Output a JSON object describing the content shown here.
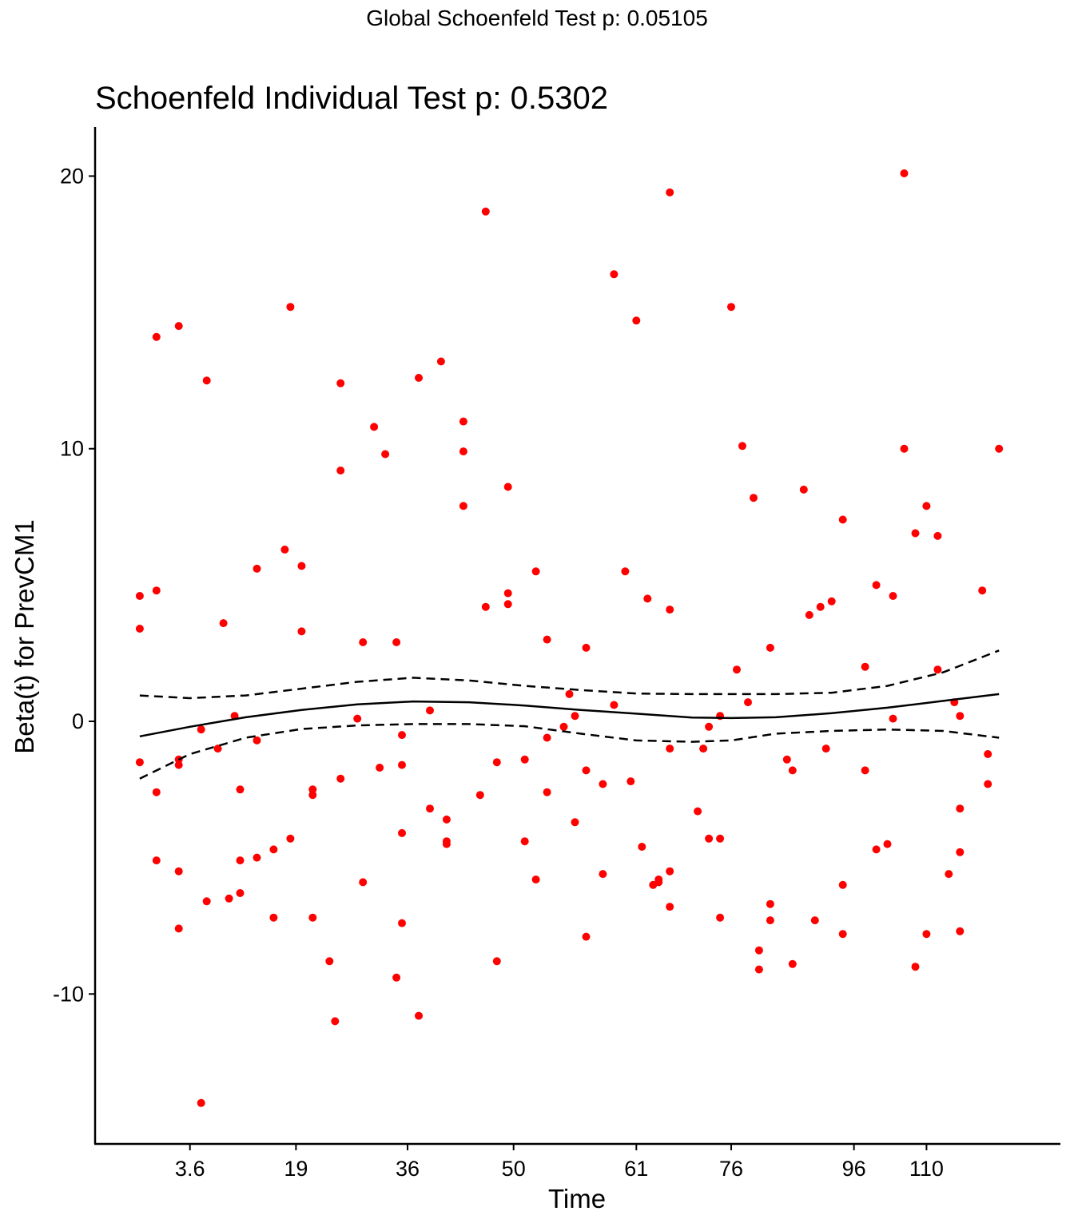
{
  "chart_data": {
    "type": "scatter",
    "suptitle": "Global Schoenfeld Test p: 0.05105",
    "title": "Schoenfeld Individual Test p: 0.5302",
    "xlabel": "Time",
    "ylabel": "Beta(t) for PrevCM1",
    "x_scale": "rank-transformed (km time transform)",
    "x_ticks": [
      "3.6",
      "19",
      "36",
      "50",
      "61",
      "76",
      "96",
      "110"
    ],
    "x_tick_rank_positions": [
      10,
      29,
      49,
      68,
      90,
      107,
      129,
      142
    ],
    "y_ticks": [
      -10,
      0,
      10,
      20
    ],
    "ylim": [
      -15.5,
      21.8
    ],
    "xlim_rank": [
      -7,
      166
    ],
    "grid": false,
    "point_color": "#ff0000",
    "line_color": "#000000",
    "points_note": "x values given as event rank (index along the transformed time axis)",
    "points": [
      [
        1,
        4.6
      ],
      [
        1,
        3.4
      ],
      [
        1,
        -1.5
      ],
      [
        4,
        14.1
      ],
      [
        4,
        4.8
      ],
      [
        4,
        -2.6
      ],
      [
        4,
        -5.1
      ],
      [
        8,
        14.5
      ],
      [
        8,
        -1.4
      ],
      [
        8,
        -1.6
      ],
      [
        8,
        -5.5
      ],
      [
        8,
        -7.6
      ],
      [
        12,
        -0.3
      ],
      [
        12,
        -14.0
      ],
      [
        13,
        12.5
      ],
      [
        13,
        -6.6
      ],
      [
        15,
        -1.0
      ],
      [
        16,
        3.6
      ],
      [
        17,
        -6.5
      ],
      [
        18,
        0.2
      ],
      [
        19,
        -2.5
      ],
      [
        19,
        -5.1
      ],
      [
        19,
        -6.3
      ],
      [
        22,
        5.6
      ],
      [
        22,
        -0.7
      ],
      [
        22,
        -5.0
      ],
      [
        25,
        -4.7
      ],
      [
        25,
        -7.2
      ],
      [
        27,
        6.3
      ],
      [
        28,
        15.2
      ],
      [
        28,
        -4.3
      ],
      [
        30,
        5.7
      ],
      [
        30,
        3.3
      ],
      [
        32,
        -2.5
      ],
      [
        32,
        -2.7
      ],
      [
        32,
        -7.2
      ],
      [
        35,
        -8.8
      ],
      [
        36,
        -11.0
      ],
      [
        37,
        12.4
      ],
      [
        37,
        9.2
      ],
      [
        37,
        -2.1
      ],
      [
        40,
        0.1
      ],
      [
        41,
        2.9
      ],
      [
        41,
        -5.9
      ],
      [
        43,
        10.8
      ],
      [
        44,
        -1.7
      ],
      [
        45,
        9.8
      ],
      [
        47,
        2.9
      ],
      [
        47,
        -9.4
      ],
      [
        48,
        -0.5
      ],
      [
        48,
        -1.6
      ],
      [
        48,
        -4.1
      ],
      [
        48,
        -7.4
      ],
      [
        51,
        12.6
      ],
      [
        51,
        -10.8
      ],
      [
        53,
        0.4
      ],
      [
        53,
        -3.2
      ],
      [
        55,
        13.2
      ],
      [
        56,
        -3.6
      ],
      [
        56,
        -4.4
      ],
      [
        56,
        -4.5
      ],
      [
        59,
        11.0
      ],
      [
        59,
        9.9
      ],
      [
        59,
        7.9
      ],
      [
        62,
        -2.7
      ],
      [
        63,
        18.7
      ],
      [
        63,
        4.2
      ],
      [
        65,
        -1.5
      ],
      [
        65,
        -8.8
      ],
      [
        67,
        8.6
      ],
      [
        67,
        4.7
      ],
      [
        67,
        4.3
      ],
      [
        70,
        -1.4
      ],
      [
        70,
        -4.4
      ],
      [
        72,
        5.5
      ],
      [
        72,
        -5.8
      ],
      [
        74,
        3.0
      ],
      [
        74,
        -0.6
      ],
      [
        74,
        -2.6
      ],
      [
        77,
        -0.2
      ],
      [
        78,
        1.0
      ],
      [
        79,
        0.2
      ],
      [
        79,
        -3.7
      ],
      [
        81,
        2.7
      ],
      [
        81,
        -1.8
      ],
      [
        81,
        -7.9
      ],
      [
        84,
        -2.3
      ],
      [
        84,
        -5.6
      ],
      [
        86,
        16.4
      ],
      [
        86,
        0.6
      ],
      [
        88,
        5.5
      ],
      [
        89,
        -2.2
      ],
      [
        90,
        14.7
      ],
      [
        91,
        -4.6
      ],
      [
        92,
        4.5
      ],
      [
        93,
        -6.0
      ],
      [
        94,
        -5.8
      ],
      [
        94,
        -5.9
      ],
      [
        96,
        19.4
      ],
      [
        96,
        4.1
      ],
      [
        96,
        -1.0
      ],
      [
        96,
        -5.5
      ],
      [
        96,
        -6.8
      ],
      [
        101,
        -3.3
      ],
      [
        102,
        -1.0
      ],
      [
        103,
        -0.2
      ],
      [
        103,
        -4.3
      ],
      [
        105,
        0.2
      ],
      [
        105,
        -4.3
      ],
      [
        105,
        -7.2
      ],
      [
        107,
        15.2
      ],
      [
        108,
        1.9
      ],
      [
        109,
        10.1
      ],
      [
        110,
        0.7
      ],
      [
        111,
        8.2
      ],
      [
        112,
        -8.4
      ],
      [
        112,
        -9.1
      ],
      [
        114,
        2.7
      ],
      [
        114,
        -6.7
      ],
      [
        114,
        -7.3
      ],
      [
        117,
        -1.4
      ],
      [
        118,
        -1.8
      ],
      [
        118,
        -8.9
      ],
      [
        120,
        8.5
      ],
      [
        121,
        3.9
      ],
      [
        122,
        -7.3
      ],
      [
        123,
        4.2
      ],
      [
        124,
        -1.0
      ],
      [
        125,
        4.4
      ],
      [
        127,
        7.4
      ],
      [
        127,
        -6.0
      ],
      [
        127,
        -7.8
      ],
      [
        131,
        2.0
      ],
      [
        131,
        -1.8
      ],
      [
        133,
        5.0
      ],
      [
        133,
        -4.7
      ],
      [
        135,
        -4.5
      ],
      [
        136,
        4.6
      ],
      [
        136,
        0.1
      ],
      [
        138,
        20.1
      ],
      [
        138,
        10.0
      ],
      [
        140,
        6.9
      ],
      [
        140,
        -9.0
      ],
      [
        142,
        7.9
      ],
      [
        142,
        -7.8
      ],
      [
        144,
        1.9
      ],
      [
        144,
        6.8
      ],
      [
        146,
        -5.6
      ],
      [
        147,
        0.7
      ],
      [
        148,
        0.2
      ],
      [
        148,
        -3.2
      ],
      [
        148,
        -4.8
      ],
      [
        148,
        -7.7
      ],
      [
        152,
        4.8
      ],
      [
        153,
        -1.2
      ],
      [
        153,
        -2.3
      ],
      [
        155,
        10.0
      ]
    ],
    "smooth_line": {
      "x": [
        1,
        10,
        20,
        30,
        40,
        50,
        60,
        70,
        80,
        90,
        100,
        107,
        115,
        125,
        135,
        145,
        155
      ],
      "y": [
        -0.55,
        -0.2,
        0.15,
        0.42,
        0.62,
        0.73,
        0.7,
        0.58,
        0.42,
        0.28,
        0.14,
        0.12,
        0.15,
        0.3,
        0.5,
        0.75,
        1.0
      ]
    },
    "upper_band": {
      "x": [
        1,
        10,
        20,
        30,
        40,
        50,
        60,
        70,
        80,
        90,
        100,
        107,
        115,
        125,
        135,
        145,
        155
      ],
      "y": [
        0.95,
        0.85,
        0.95,
        1.2,
        1.45,
        1.6,
        1.5,
        1.3,
        1.15,
        1.02,
        1.0,
        1.0,
        1.0,
        1.05,
        1.3,
        1.8,
        2.6
      ]
    },
    "lower_band": {
      "x": [
        1,
        10,
        20,
        30,
        40,
        50,
        60,
        70,
        80,
        90,
        100,
        107,
        115,
        125,
        135,
        145,
        155
      ],
      "y": [
        -2.1,
        -1.2,
        -0.6,
        -0.28,
        -0.15,
        -0.1,
        -0.1,
        -0.18,
        -0.45,
        -0.7,
        -0.75,
        -0.7,
        -0.45,
        -0.35,
        -0.3,
        -0.35,
        -0.6
      ]
    }
  }
}
